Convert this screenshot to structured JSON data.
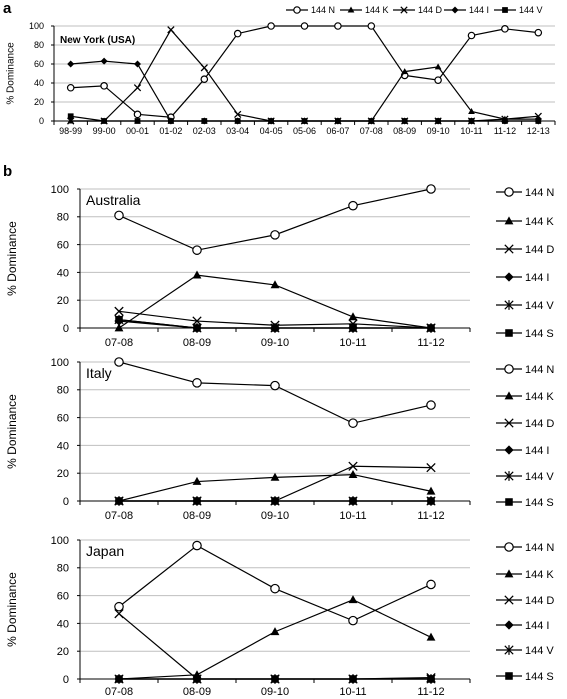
{
  "panel_labels": [
    "a",
    "b"
  ],
  "colors": {
    "line": "#000000",
    "grid": "#bfbfbf",
    "axis": "#000000",
    "open_marker_fill": "#ffffff"
  },
  "chart_data": [
    {
      "id": "a",
      "type": "line",
      "panel": "a",
      "region": "New York (USA)",
      "ylabel": "% Dominance",
      "xlabel": "",
      "ylim": [
        0,
        100
      ],
      "yticks": [
        0,
        20,
        40,
        60,
        80,
        100
      ],
      "grid": true,
      "legend_position": "top",
      "categories": [
        "98-99",
        "99-00",
        "00-01",
        "01-02",
        "02-03",
        "03-04",
        "04-05",
        "05-06",
        "06-07",
        "07-08",
        "08-09",
        "09-10",
        "10-11",
        "11-12",
        "12-13"
      ],
      "series": [
        {
          "name": "144 N",
          "marker": "open-circle",
          "values": [
            35,
            37,
            7,
            4,
            44,
            92,
            100,
            100,
            100,
            100,
            48,
            43,
            90,
            97,
            93
          ]
        },
        {
          "name": "144 K",
          "marker": "triangle",
          "values": [
            0,
            0,
            0,
            0,
            0,
            0,
            0,
            0,
            0,
            0,
            52,
            57,
            10,
            2,
            2
          ]
        },
        {
          "name": "144 D",
          "marker": "x",
          "values": [
            0,
            0,
            35,
            96,
            56,
            7,
            0,
            0,
            0,
            0,
            0,
            0,
            0,
            2,
            5
          ]
        },
        {
          "name": "144 I",
          "marker": "diamond",
          "values": [
            60,
            63,
            60,
            0,
            0,
            0,
            0,
            0,
            0,
            0,
            0,
            0,
            0,
            0,
            0
          ]
        },
        {
          "name": "144 V",
          "marker": "square",
          "values": [
            5,
            0,
            0,
            0,
            0,
            0,
            0,
            0,
            0,
            0,
            0,
            0,
            0,
            0,
            0
          ]
        }
      ]
    },
    {
      "id": "australia",
      "type": "line",
      "panel": "b",
      "region": "Australia",
      "ylabel": "% Dominance",
      "xlabel": "",
      "ylim": [
        0,
        100
      ],
      "yticks": [
        0,
        20,
        40,
        60,
        80,
        100
      ],
      "grid": true,
      "legend_position": "right",
      "categories": [
        "07-08",
        "08-09",
        "09-10",
        "10-11",
        "11-12"
      ],
      "series": [
        {
          "name": "144 N",
          "marker": "open-circle",
          "values": [
            81,
            56,
            67,
            88,
            100
          ]
        },
        {
          "name": "144 K",
          "marker": "triangle",
          "values": [
            0,
            38,
            31,
            8,
            0
          ]
        },
        {
          "name": "144 D",
          "marker": "x",
          "values": [
            12,
            5,
            2,
            3,
            0
          ]
        },
        {
          "name": "144 I",
          "marker": "diamond",
          "values": [
            5,
            0,
            0,
            0,
            0
          ]
        },
        {
          "name": "144 V",
          "marker": "star",
          "values": [
            6,
            0,
            0,
            0,
            0
          ]
        },
        {
          "name": "144 S",
          "marker": "square",
          "values": [
            6,
            0,
            0,
            0,
            0
          ]
        }
      ]
    },
    {
      "id": "italy",
      "type": "line",
      "panel": "b",
      "region": "Italy",
      "ylabel": "% Dominance",
      "xlabel": "",
      "ylim": [
        0,
        100
      ],
      "yticks": [
        0,
        20,
        40,
        60,
        80,
        100
      ],
      "grid": true,
      "legend_position": "right",
      "categories": [
        "07-08",
        "08-09",
        "09-10",
        "10-11",
        "11-12"
      ],
      "series": [
        {
          "name": "144 N",
          "marker": "open-circle",
          "values": [
            100,
            85,
            83,
            56,
            69
          ]
        },
        {
          "name": "144 K",
          "marker": "triangle",
          "values": [
            0,
            14,
            17,
            19,
            7
          ]
        },
        {
          "name": "144 D",
          "marker": "x",
          "values": [
            0,
            0,
            0,
            25,
            24
          ]
        },
        {
          "name": "144 I",
          "marker": "diamond",
          "values": [
            0,
            0,
            0,
            0,
            0
          ]
        },
        {
          "name": "144 V",
          "marker": "star",
          "values": [
            0,
            0,
            0,
            0,
            0
          ]
        },
        {
          "name": "144 S",
          "marker": "square",
          "values": [
            0,
            0,
            0,
            0,
            0
          ]
        }
      ]
    },
    {
      "id": "japan",
      "type": "line",
      "panel": "b",
      "region": "Japan",
      "ylabel": "% Dominance",
      "xlabel": "",
      "ylim": [
        0,
        100
      ],
      "yticks": [
        0,
        20,
        40,
        60,
        80,
        100
      ],
      "grid": true,
      "legend_position": "right",
      "categories": [
        "07-08",
        "08-09",
        "09-10",
        "10-11",
        "11-12"
      ],
      "series": [
        {
          "name": "144 N",
          "marker": "open-circle",
          "values": [
            52,
            96,
            65,
            42,
            68
          ]
        },
        {
          "name": "144 K",
          "marker": "triangle",
          "values": [
            0,
            3,
            34,
            57,
            30
          ]
        },
        {
          "name": "144 D",
          "marker": "x",
          "values": [
            47,
            0,
            0,
            0,
            1
          ]
        },
        {
          "name": "144 I",
          "marker": "diamond",
          "values": [
            0,
            0,
            0,
            0,
            0
          ]
        },
        {
          "name": "144 V",
          "marker": "star",
          "values": [
            0,
            0,
            0,
            0,
            0
          ]
        },
        {
          "name": "144 S",
          "marker": "square",
          "values": [
            0,
            0,
            0,
            0,
            0
          ]
        }
      ]
    }
  ]
}
